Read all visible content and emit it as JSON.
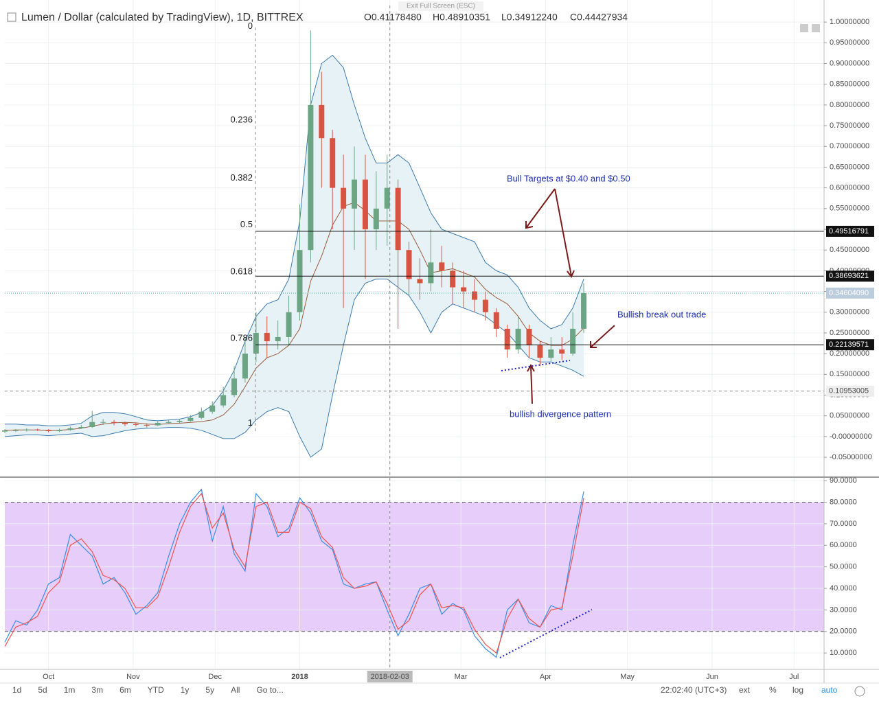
{
  "fullscreen_tip": "Exit Full Screen (ESC)",
  "header": {
    "title": "Lumen / Dollar (calculated by TradingView), 1D, BITTREX",
    "ohlc_legend": [
      "O0.41178480",
      "H0.48910351",
      "L0.34912240",
      "C0.44427934"
    ]
  },
  "annotations": [
    {
      "text": "Bull Targets at $0.40 and $0.50"
    },
    {
      "text": "Bullish break out trade"
    },
    {
      "text": "bullish divergence pattern"
    }
  ],
  "toolbar": {
    "ranges": [
      "1d",
      "5d",
      "1m",
      "3m",
      "6m",
      "YTD",
      "1y",
      "5y",
      "All",
      "Go to..."
    ],
    "time": "22:02:40 (UTC+3)",
    "options": [
      "ext",
      "%",
      "log",
      "auto"
    ]
  },
  "chart_data": [
    {
      "type": "candlestick",
      "xlim": [
        0,
        75
      ],
      "ylim": [
        -0.093,
        1.04
      ],
      "yticks": [
        {
          "value": 1,
          "label": "1.00000000"
        },
        {
          "value": 0.95,
          "label": "0.95000000"
        },
        {
          "value": 0.9,
          "label": "0.90000000"
        },
        {
          "value": 0.85,
          "label": "0.85000000"
        },
        {
          "value": 0.8,
          "label": "0.80000000"
        },
        {
          "value": 0.75,
          "label": "0.75000000"
        },
        {
          "value": 0.7,
          "label": "0.70000000"
        },
        {
          "value": 0.65,
          "label": "0.65000000"
        },
        {
          "value": 0.6,
          "label": "0.60000000"
        },
        {
          "value": 0.55,
          "label": "0.55000000"
        },
        {
          "value": 0.5,
          "label": "0.50000000"
        },
        {
          "value": 0.45,
          "label": "0.45000000"
        },
        {
          "value": 0.4,
          "label": "0.40000000"
        },
        {
          "value": 0.35,
          "label": "0.35000000"
        },
        {
          "value": 0.3,
          "label": "0.30000000"
        },
        {
          "value": 0.25,
          "label": "0.25000000"
        },
        {
          "value": 0.2,
          "label": "0.20000000"
        },
        {
          "value": 0.15,
          "label": "0.15000000"
        },
        {
          "value": 0.1,
          "label": "0.10000000"
        },
        {
          "value": 0.05,
          "label": "0.05000000"
        },
        {
          "value": 0,
          "label": "-0.00000000"
        },
        {
          "value": -0.05,
          "label": "-0.05000000"
        }
      ],
      "grid": true,
      "up_color": "#6ba583",
      "down_color": "#d75442",
      "open": [
        0.012,
        0.015,
        0.015,
        0.017,
        0.016,
        0.013,
        0.016,
        0.02,
        0.023,
        0.035,
        0.035,
        0.033,
        0.03,
        0.028,
        0.027,
        0.033,
        0.035,
        0.038,
        0.045,
        0.06,
        0.075,
        0.1,
        0.14,
        0.2,
        0.25,
        0.23,
        0.24,
        0.3,
        0.45,
        0.8,
        0.72,
        0.6,
        0.55,
        0.62,
        0.5,
        0.55,
        0.6,
        0.45,
        0.38,
        0.37,
        0.42,
        0.4,
        0.36,
        0.35,
        0.33,
        0.3,
        0.26,
        0.21,
        0.26,
        0.22,
        0.19,
        0.21,
        0.2,
        0.26
      ],
      "high": [
        0.018,
        0.018,
        0.02,
        0.019,
        0.018,
        0.019,
        0.024,
        0.028,
        0.062,
        0.042,
        0.04,
        0.036,
        0.034,
        0.032,
        0.038,
        0.04,
        0.043,
        0.052,
        0.07,
        0.085,
        0.12,
        0.17,
        0.24,
        0.3,
        0.29,
        0.28,
        0.34,
        0.56,
        0.98,
        0.88,
        0.74,
        0.68,
        0.7,
        0.68,
        0.64,
        0.68,
        0.62,
        0.47,
        0.43,
        0.5,
        0.46,
        0.42,
        0.4,
        0.38,
        0.35,
        0.31,
        0.27,
        0.29,
        0.27,
        0.23,
        0.24,
        0.24,
        0.3,
        0.37
      ],
      "low": [
        0.008,
        0.011,
        0.012,
        0.013,
        0.01,
        0.011,
        0.014,
        0.018,
        0.021,
        0.028,
        0.027,
        0.025,
        0.024,
        0.022,
        0.025,
        0.03,
        0.032,
        0.036,
        0.042,
        0.055,
        0.07,
        0.095,
        0.13,
        0.18,
        0.19,
        0.21,
        0.22,
        0.28,
        0.42,
        0.6,
        0.5,
        0.31,
        0.45,
        0.38,
        0.45,
        0.46,
        0.26,
        0.34,
        0.33,
        0.35,
        0.36,
        0.32,
        0.31,
        0.3,
        0.28,
        0.24,
        0.19,
        0.2,
        0.19,
        0.17,
        0.18,
        0.185,
        0.195,
        0.25
      ],
      "close": [
        0.015,
        0.015,
        0.017,
        0.016,
        0.013,
        0.016,
        0.02,
        0.023,
        0.035,
        0.035,
        0.033,
        0.03,
        0.028,
        0.027,
        0.033,
        0.035,
        0.038,
        0.045,
        0.06,
        0.075,
        0.1,
        0.14,
        0.2,
        0.25,
        0.23,
        0.24,
        0.3,
        0.45,
        0.8,
        0.72,
        0.6,
        0.55,
        0.62,
        0.5,
        0.55,
        0.6,
        0.45,
        0.38,
        0.37,
        0.42,
        0.4,
        0.36,
        0.35,
        0.33,
        0.3,
        0.26,
        0.21,
        0.26,
        0.22,
        0.19,
        0.21,
        0.2,
        0.26,
        0.346
      ],
      "bands": {
        "color": "#3d7bb0",
        "fill": "#e6f2f5",
        "mid_color": "#9b5a3c",
        "upper": [
          0.03,
          0.03,
          0.028,
          0.028,
          0.026,
          0.026,
          0.028,
          0.032,
          0.05,
          0.058,
          0.058,
          0.055,
          0.048,
          0.04,
          0.038,
          0.04,
          0.042,
          0.048,
          0.058,
          0.075,
          0.11,
          0.16,
          0.23,
          0.29,
          0.32,
          0.33,
          0.38,
          0.52,
          0.8,
          0.9,
          0.92,
          0.89,
          0.8,
          0.72,
          0.66,
          0.66,
          0.68,
          0.66,
          0.6,
          0.54,
          0.5,
          0.49,
          0.48,
          0.47,
          0.42,
          0.4,
          0.39,
          0.36,
          0.31,
          0.28,
          0.26,
          0.27,
          0.31,
          0.38
        ],
        "mid": [
          0.015,
          0.016,
          0.016,
          0.016,
          0.014,
          0.015,
          0.017,
          0.02,
          0.025,
          0.03,
          0.033,
          0.034,
          0.033,
          0.03,
          0.029,
          0.031,
          0.032,
          0.034,
          0.036,
          0.04,
          0.052,
          0.078,
          0.12,
          0.165,
          0.19,
          0.2,
          0.22,
          0.26,
          0.375,
          0.435,
          0.51,
          0.555,
          0.565,
          0.545,
          0.52,
          0.52,
          0.52,
          0.5,
          0.45,
          0.395,
          0.4,
          0.405,
          0.395,
          0.385,
          0.355,
          0.335,
          0.32,
          0.29,
          0.25,
          0.23,
          0.22,
          0.22,
          0.235,
          0.262
        ],
        "lower": [
          0.0,
          0.002,
          0.004,
          0.004,
          0.002,
          0.004,
          0.006,
          0.008,
          0.0,
          0.002,
          0.008,
          0.014,
          0.018,
          0.02,
          0.02,
          0.022,
          0.022,
          0.02,
          0.015,
          0.005,
          -0.005,
          -0.005,
          0.01,
          0.04,
          0.06,
          0.07,
          0.06,
          0.0,
          -0.05,
          -0.03,
          0.1,
          0.22,
          0.33,
          0.37,
          0.38,
          0.38,
          0.36,
          0.34,
          0.3,
          0.25,
          0.3,
          0.32,
          0.31,
          0.3,
          0.29,
          0.27,
          0.25,
          0.22,
          0.19,
          0.18,
          0.18,
          0.17,
          0.16,
          0.145
        ]
      },
      "fib": [
        {
          "ratio": 0,
          "price": 0.978
        },
        {
          "ratio": 0.236,
          "price": 0.752
        },
        {
          "ratio": 0.382,
          "price": 0.612
        },
        {
          "ratio": 0.5,
          "price": 0.499
        },
        {
          "ratio": 0.618,
          "price": 0.386
        },
        {
          "ratio": 0.786,
          "price": 0.225
        },
        {
          "ratio": 1,
          "price": 0.02
        }
      ],
      "levels": [
        0.49516791,
        0.38693621,
        0.22139571
      ],
      "last_price": {
        "value": 0.3460409,
        "label": "0.34604090"
      },
      "crosshair_price": 0.10953005
    },
    {
      "type": "line",
      "xlim": [
        0,
        75
      ],
      "ylim": [
        2.4,
        91
      ],
      "yticks": [
        {
          "value": 90,
          "label": "90.0000"
        },
        {
          "value": 80,
          "label": "80.0000"
        },
        {
          "value": 70,
          "label": "70.0000"
        },
        {
          "value": 60,
          "label": "60.0000"
        },
        {
          "value": 50,
          "label": "50.0000"
        },
        {
          "value": 40,
          "label": "40.0000"
        },
        {
          "value": 30,
          "label": "30.0000"
        },
        {
          "value": 20,
          "label": "20.0000"
        },
        {
          "value": 10,
          "label": "10.0000"
        }
      ],
      "overbought": 80,
      "oversold": 20,
      "band_color": "#e6cdfa",
      "xticks": [
        {
          "value": 4,
          "label": "Oct"
        },
        {
          "value": 11.75,
          "label": "Nov"
        },
        {
          "value": 19.25,
          "label": "Dec"
        },
        {
          "value": 27,
          "label": "2018"
        },
        {
          "value": 35.25,
          "label": "2018-02-03"
        },
        {
          "value": 41.75,
          "label": "Mar"
        },
        {
          "value": 49.5,
          "label": "Apr"
        },
        {
          "value": 57,
          "label": "May"
        },
        {
          "value": 64.75,
          "label": "Jun"
        },
        {
          "value": 72.25,
          "label": "Jul"
        }
      ],
      "crosshair_xtick": 4,
      "series": [
        {
          "color": "#3a8ee6",
          "values": [
            15,
            25,
            23,
            30,
            42,
            45,
            65,
            60,
            55,
            42,
            45,
            38,
            28,
            32,
            38,
            55,
            70,
            80,
            86,
            62,
            78,
            56,
            48,
            84,
            78,
            64,
            68,
            82,
            75,
            62,
            58,
            42,
            40,
            42,
            43,
            30,
            18,
            28,
            40,
            42,
            28,
            33,
            30,
            18,
            12,
            8,
            30,
            35,
            24,
            22,
            32,
            30,
            60,
            85
          ]
        },
        {
          "color": "#ef5350",
          "values": [
            13,
            22,
            24,
            27,
            38,
            43,
            60,
            63,
            57,
            46,
            44,
            40,
            31,
            31,
            36,
            50,
            66,
            78,
            84,
            68,
            75,
            58,
            50,
            78,
            80,
            66,
            66,
            80,
            77,
            64,
            59,
            45,
            40,
            41,
            43,
            33,
            21,
            25,
            37,
            42,
            31,
            32,
            31,
            21,
            14,
            10,
            26,
            35,
            26,
            22,
            30,
            31,
            55,
            82
          ]
        }
      ]
    }
  ]
}
